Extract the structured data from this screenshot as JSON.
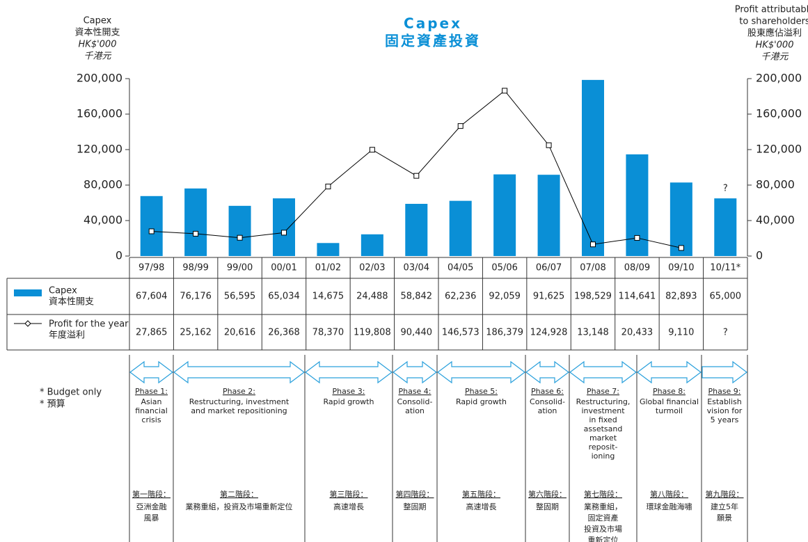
{
  "chart_data": {
    "type": "bar",
    "title": [
      "Capex",
      "固定資產投資"
    ],
    "y_label": [
      "Capex",
      "資本性開支",
      "HK$'000",
      "千港元"
    ],
    "y2_label": [
      "Profit attributable",
      "to shareholders",
      "股東應佔溢利",
      "HK$'000",
      "千港元"
    ],
    "categories": [
      "97/98",
      "98/99",
      "99/00",
      "00/01",
      "01/02",
      "02/03",
      "03/04",
      "04/05",
      "05/06",
      "06/07",
      "07/08",
      "08/09",
      "09/10",
      "10/11*"
    ],
    "series": [
      {
        "name": [
          "Capex",
          "資本性開支"
        ],
        "type": "bar",
        "color": "#0a8fd6",
        "values": [
          67604,
          76176,
          56595,
          65034,
          14675,
          24488,
          58842,
          62236,
          92059,
          91625,
          198529,
          114641,
          82893,
          65000
        ],
        "value_labels": [
          "67,604",
          "76,176",
          "56,595",
          "65,034",
          "14,675",
          "24,488",
          "58,842",
          "62,236",
          "92,059",
          "91,625",
          "198,529",
          "114,641",
          "82,893",
          "65,000"
        ]
      },
      {
        "name": [
          "Profit for the year",
          "年度溢利"
        ],
        "type": "line",
        "axis": "y2",
        "color": "#000000",
        "values": [
          27865,
          25162,
          20616,
          26368,
          78370,
          119808,
          90440,
          146573,
          186379,
          124928,
          13148,
          20433,
          9110,
          null
        ],
        "value_labels": [
          "27,865",
          "25,162",
          "20,616",
          "26,368",
          "78,370",
          "119,808",
          "90,440",
          "146,573",
          "186,379",
          "124,928",
          "13,148",
          "20,433",
          "9,110",
          "?"
        ]
      }
    ],
    "ylim": [
      0,
      200000
    ],
    "yticks": [
      0,
      {
        "value": 40000,
        "label": "40,000"
      },
      {
        "value": 80000,
        "label": "80,000"
      },
      {
        "value": 120000,
        "label": "120,000"
      },
      {
        "value": 160000,
        "label": "160,000"
      },
      {
        "value": 200000,
        "label": "200,000"
      }
    ],
    "y2lim": [
      0,
      200000
    ],
    "y2ticks": [
      0,
      {
        "value": 40000,
        "label": "40,000"
      },
      {
        "value": 80000,
        "label": "80,000"
      },
      {
        "value": 120000,
        "label": "120,000"
      },
      {
        "value": 160000,
        "label": "160,000"
      },
      {
        "value": 200000,
        "label": "200,000"
      }
    ]
  },
  "footnote": [
    "* Budget only",
    "* 預算"
  ],
  "phases": [
    {
      "label": "Phase 1:",
      "desc": [
        "Asian",
        "financial",
        "crisis"
      ],
      "zh_label": "第一階段：",
      "zh_desc": [
        "亞洲金融",
        "風暴"
      ]
    },
    {
      "label": "Phase 2:",
      "desc": [
        "Restructuring, investment",
        "and market repositioning"
      ],
      "zh_label": "第二階段：",
      "zh_desc": [
        "業務重組，投資及市場重新定位"
      ]
    },
    {
      "label": "Phase 3:",
      "desc": [
        "Rapid growth"
      ],
      "zh_label": "第三階段：",
      "zh_desc": [
        "高速增長"
      ]
    },
    {
      "label": "Phase 4:",
      "desc": [
        "Consolid-",
        "ation"
      ],
      "zh_label": "第四階段：",
      "zh_desc": [
        "整固期"
      ]
    },
    {
      "label": "Phase 5:",
      "desc": [
        "Rapid growth"
      ],
      "zh_label": "第五階段：",
      "zh_desc": [
        "高速增長"
      ]
    },
    {
      "label": "Phase 6:",
      "desc": [
        "Consolid-",
        "ation"
      ],
      "zh_label": "第六階段：",
      "zh_desc": [
        "整固期"
      ]
    },
    {
      "label": "Phase 7:",
      "desc": [
        "Restructuring,",
        "investment",
        "in fixed",
        "assetsand",
        "market",
        "reposit-",
        "ioning"
      ],
      "zh_label": "第七階段：",
      "zh_desc": [
        "業務重組，",
        "固定資產",
        "投資及市場",
        "重新定位"
      ]
    },
    {
      "label": "Phase 8:",
      "desc": [
        "Global financial",
        "turmoil"
      ],
      "zh_label": "第八階段：",
      "zh_desc": [
        "環球金融海嘯"
      ]
    },
    {
      "label": "Phase 9:",
      "desc": [
        "Establish",
        "vision for",
        "5 years"
      ],
      "zh_label": "第九階段：",
      "zh_desc": [
        "建立5年",
        "願景"
      ]
    }
  ]
}
